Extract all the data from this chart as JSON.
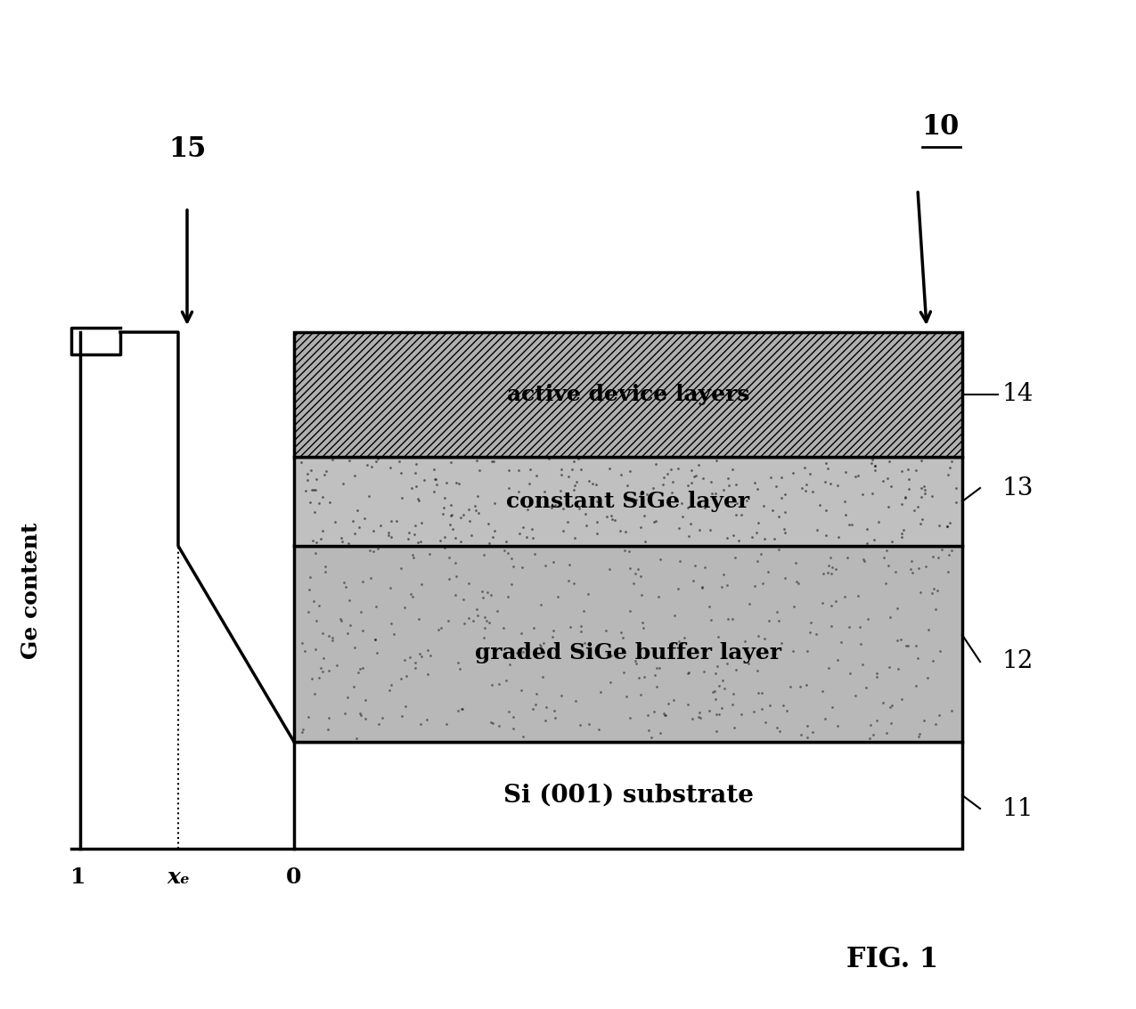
{
  "bg_color": "#ffffff",
  "fig_label": "FIG. 1",
  "label_10": "10",
  "label_15": "15",
  "label_11": "11",
  "label_12": "12",
  "label_13": "13",
  "label_14": "14",
  "layer_labels": [
    "active device layers",
    "constant SiGe layer",
    "graded SiGe buffer layer",
    "Si (001) substrate"
  ],
  "axis_label_x_left": "1",
  "axis_label_x_xf": "xₑ",
  "axis_label_x_right": "0",
  "axis_label_y": "Ge content",
  "hatch_active": "////",
  "color_active": "#b0b0b0",
  "color_constant": "#c0c0c0",
  "color_graded": "#b8b8b8",
  "color_substrate": "#ffffff"
}
